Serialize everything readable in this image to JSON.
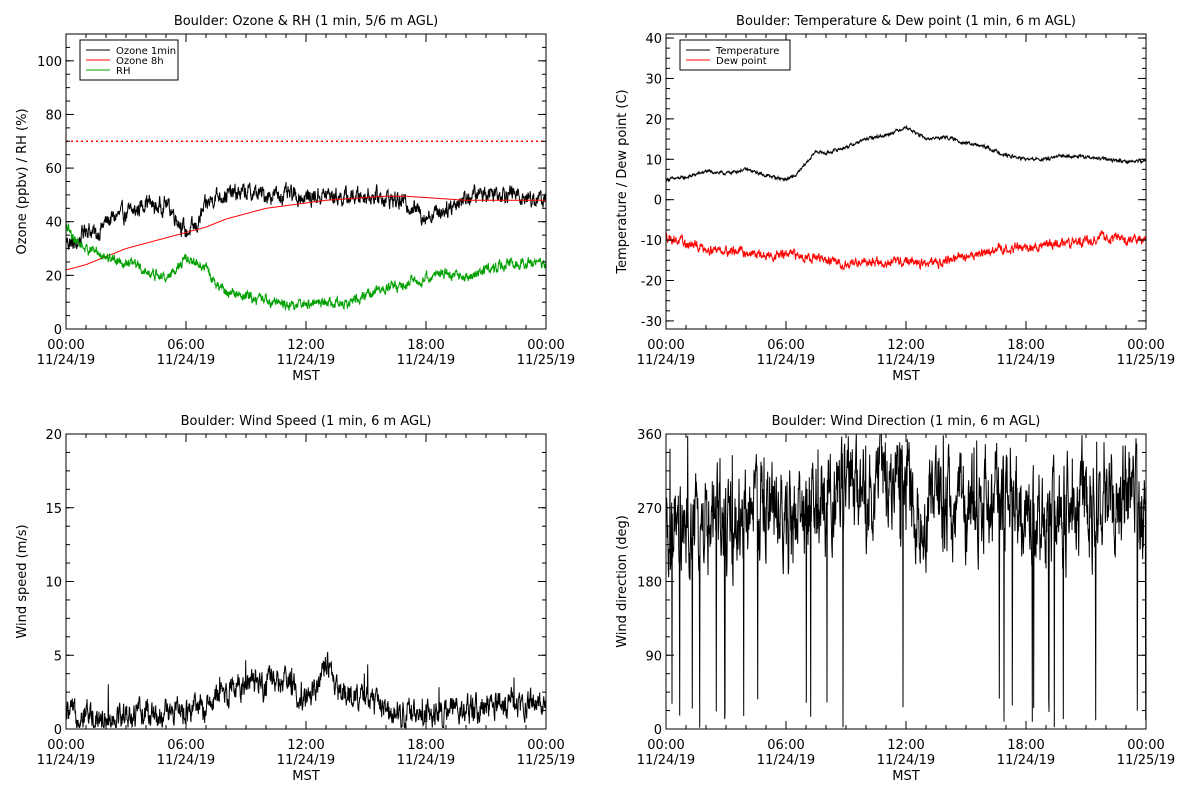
{
  "time_axis": {
    "ticks": [
      {
        "hour": 0,
        "time": "00:00",
        "date": "11/24/19"
      },
      {
        "hour": 6,
        "time": "06:00",
        "date": "11/24/19"
      },
      {
        "hour": 12,
        "time": "12:00",
        "date": "11/24/19"
      },
      {
        "hour": 18,
        "time": "18:00",
        "date": "11/24/19"
      },
      {
        "hour": 24,
        "time": "00:00",
        "date": "11/25/19"
      }
    ],
    "label": "MST",
    "range_hours": [
      0,
      24
    ]
  },
  "chart_data": [
    {
      "type": "line",
      "title": "Boulder: Ozone & RH (1 min, 5/6 m AGL)",
      "ylabel": "Ozone (ppbv) / RH (%)",
      "xlabel": "MST",
      "ylim": [
        0,
        110
      ],
      "yticks": [
        0,
        20,
        40,
        60,
        80,
        100
      ],
      "legend_position": "top-left",
      "reference_line": {
        "y": 70,
        "color": "#ff0000",
        "style": "dotted"
      },
      "series": [
        {
          "name": "Ozone 1min",
          "color": "#000000",
          "noise": 2.5,
          "x": [
            0,
            0.5,
            1,
            1.5,
            2,
            2.5,
            3,
            3.5,
            4,
            4.5,
            5,
            5.5,
            6,
            6.5,
            7,
            7.5,
            8,
            9,
            10,
            11,
            12,
            13,
            14,
            15,
            16,
            17,
            18,
            19,
            20,
            21,
            22,
            23,
            24
          ],
          "y": [
            33,
            31,
            38,
            35,
            40,
            42,
            43,
            44,
            48,
            45,
            47,
            42,
            36,
            38,
            46,
            50,
            50,
            51,
            50,
            50,
            49,
            50,
            49,
            50,
            49,
            47,
            42,
            45,
            49,
            51,
            51,
            49,
            48
          ]
        },
        {
          "name": "Ozone 8h",
          "color": "#ff0000",
          "noise": 0,
          "x": [
            0,
            1,
            2,
            3,
            4,
            5,
            6,
            7,
            8,
            9,
            10,
            11,
            12,
            13,
            14,
            15,
            16,
            17,
            18,
            19,
            20,
            21,
            22,
            23,
            24
          ],
          "y": [
            22,
            24,
            27,
            30,
            32,
            34,
            36,
            38,
            41,
            43,
            45,
            46,
            47,
            48,
            48.5,
            49,
            49.5,
            49.5,
            49,
            48.5,
            48,
            48,
            48,
            48,
            48
          ]
        },
        {
          "name": "RH",
          "color": "#00a000",
          "noise": 1.5,
          "x": [
            0,
            0.5,
            1,
            1.5,
            2,
            2.5,
            3,
            3.5,
            4,
            5,
            6,
            7,
            7.5,
            8,
            9,
            10,
            11,
            12,
            13,
            14,
            15,
            16,
            17,
            18,
            19,
            20,
            21,
            22,
            23,
            24
          ],
          "y": [
            38,
            33,
            30,
            29,
            27,
            26,
            25,
            24,
            21,
            19,
            26,
            23,
            16,
            14,
            12,
            11,
            9,
            9,
            10,
            9,
            13,
            15,
            17,
            19,
            21,
            19,
            22,
            24,
            25,
            24
          ]
        }
      ]
    },
    {
      "type": "line",
      "title": "Boulder: Temperature & Dew point (1 min, 6 m AGL)",
      "ylabel": "Temperature / Dew point (C)",
      "xlabel": "MST",
      "ylim": [
        -32,
        41
      ],
      "yticks": [
        -30,
        -20,
        -10,
        0,
        10,
        20,
        30,
        40
      ],
      "legend_position": "top-left",
      "series": [
        {
          "name": "Temperature",
          "color": "#000000",
          "noise": 0.3,
          "x": [
            0,
            1,
            2,
            3,
            4,
            5,
            6,
            6.5,
            7,
            7.5,
            8,
            9,
            10,
            11,
            12,
            13,
            14,
            15,
            16,
            17,
            18,
            19,
            20,
            21,
            22,
            23,
            24
          ],
          "y": [
            5,
            5.5,
            7,
            6.5,
            7.5,
            6,
            5,
            6,
            9,
            12,
            11.5,
            13,
            15,
            16,
            18,
            15,
            15.5,
            14,
            13,
            11,
            10,
            10,
            11,
            10.5,
            10,
            9.5,
            9.5
          ]
        },
        {
          "name": "Dew point",
          "color": "#ff0000",
          "noise": 0.9,
          "x": [
            0,
            1,
            2,
            3,
            4,
            5,
            6,
            7,
            8,
            9,
            10,
            11,
            12,
            13,
            14,
            15,
            16,
            17,
            18,
            19,
            20,
            21,
            22,
            23,
            24
          ],
          "y": [
            -9,
            -11,
            -12,
            -12.5,
            -13,
            -14,
            -13.5,
            -14,
            -15,
            -16,
            -15,
            -16,
            -15,
            -16,
            -15,
            -14,
            -13,
            -12,
            -12,
            -11,
            -11,
            -10,
            -9,
            -10,
            -10
          ]
        }
      ]
    },
    {
      "type": "line",
      "title": "Boulder: Wind Speed (1 min, 6 m AGL)",
      "ylabel": "Wind speed (m/s)",
      "xlabel": "MST",
      "ylim": [
        0,
        20
      ],
      "yticks": [
        0,
        5,
        10,
        15,
        20
      ],
      "series": [
        {
          "color": "#000000",
          "noise": 0.7,
          "x": [
            0,
            1,
            2,
            3,
            4,
            5,
            6,
            7,
            8,
            9,
            10,
            11,
            12,
            12.5,
            13,
            13.5,
            14,
            15,
            16,
            17,
            18,
            19,
            20,
            21,
            22,
            23,
            24
          ],
          "y": [
            1,
            1,
            0.8,
            0.9,
            1,
            1,
            1.2,
            1.5,
            2.5,
            3,
            3,
            3.2,
            2,
            3,
            4.5,
            2.5,
            2.5,
            2,
            1.5,
            1,
            1,
            1.2,
            1.2,
            1.5,
            1.6,
            1.8,
            1.8
          ]
        }
      ]
    },
    {
      "type": "line",
      "title": "Boulder: Wind Direction (1 min, 6 m AGL)",
      "ylabel": "Wind direction (deg)",
      "xlabel": "MST",
      "ylim": [
        0,
        360
      ],
      "yticks": [
        0,
        90,
        180,
        270,
        360
      ],
      "series": [
        {
          "color": "#000000",
          "noise": 45,
          "x": [
            0,
            1,
            2,
            3,
            4,
            5,
            6,
            7,
            8,
            9,
            10,
            11,
            12,
            13,
            14,
            15,
            16,
            17,
            18,
            19,
            20,
            21,
            22,
            23,
            24
          ],
          "y": [
            220,
            230,
            250,
            240,
            260,
            270,
            250,
            260,
            270,
            300,
            280,
            310,
            290,
            250,
            280,
            270,
            280,
            290,
            260,
            250,
            260,
            270,
            260,
            280,
            270
          ]
        }
      ]
    }
  ]
}
